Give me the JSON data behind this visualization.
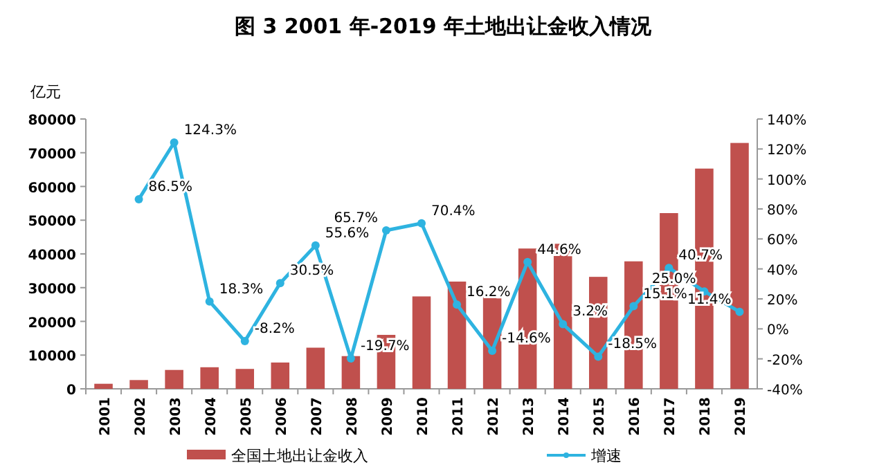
{
  "chart_data": {
    "type": "bar",
    "title": "图 3   2001 年-2019 年土地出让金收入情况",
    "ylabel": "亿元",
    "categories": [
      "2001",
      "2002",
      "2003",
      "2004",
      "2005",
      "2006",
      "2007",
      "2008",
      "2009",
      "2010",
      "2011",
      "2012",
      "2013",
      "2014",
      "2015",
      "2016",
      "2017",
      "2018",
      "2019"
    ],
    "ylim": [
      0,
      80000
    ],
    "yticks": [
      0,
      10000,
      20000,
      30000,
      40000,
      50000,
      60000,
      70000,
      80000
    ],
    "y2lim": [
      -40,
      140
    ],
    "y2ticks": [
      {
        "value": -40,
        "label": "-40%"
      },
      {
        "value": -20,
        "label": "-20%"
      },
      {
        "value": 0,
        "label": "0%"
      },
      {
        "value": 20,
        "label": "20%"
      },
      {
        "value": 40,
        "label": "40%"
      },
      {
        "value": 60,
        "label": "60%"
      },
      {
        "value": 80,
        "label": "80%"
      },
      {
        "value": 100,
        "label": "100%"
      },
      {
        "value": 120,
        "label": "120%"
      },
      {
        "value": 140,
        "label": "140%"
      }
    ],
    "legend": "bottom",
    "grid": false,
    "series": [
      {
        "name": "全国土地出让金收入",
        "color": "#c0504d",
        "values": [
          1500,
          2600,
          5600,
          6400,
          5900,
          7800,
          12200,
          9700,
          16000,
          27400,
          31800,
          27300,
          41600,
          43000,
          33200,
          37800,
          52100,
          65300,
          72900
        ]
      },
      {
        "name": "增速",
        "type": "line",
        "axis": "y2",
        "color": "#2eb3e0",
        "marker": "circle",
        "values": [
          null,
          86.5,
          124.3,
          18.3,
          -8.2,
          30.5,
          55.6,
          -19.7,
          65.7,
          70.4,
          16.2,
          -14.6,
          44.6,
          3.2,
          -18.5,
          15.1,
          40.7,
          25.0,
          11.4
        ],
        "value_labels": [
          null,
          "86.5%",
          "124.3%",
          "18.3%",
          "-8.2%",
          "30.5%",
          "55.6%",
          "-19.7%",
          "65.7%",
          "70.4%",
          "16.2%",
          "-14.6%",
          "44.6%",
          "3.2%",
          "-18.5%",
          "15.1%",
          "40.7%",
          "25.0%",
          "11.4%"
        ]
      }
    ]
  }
}
